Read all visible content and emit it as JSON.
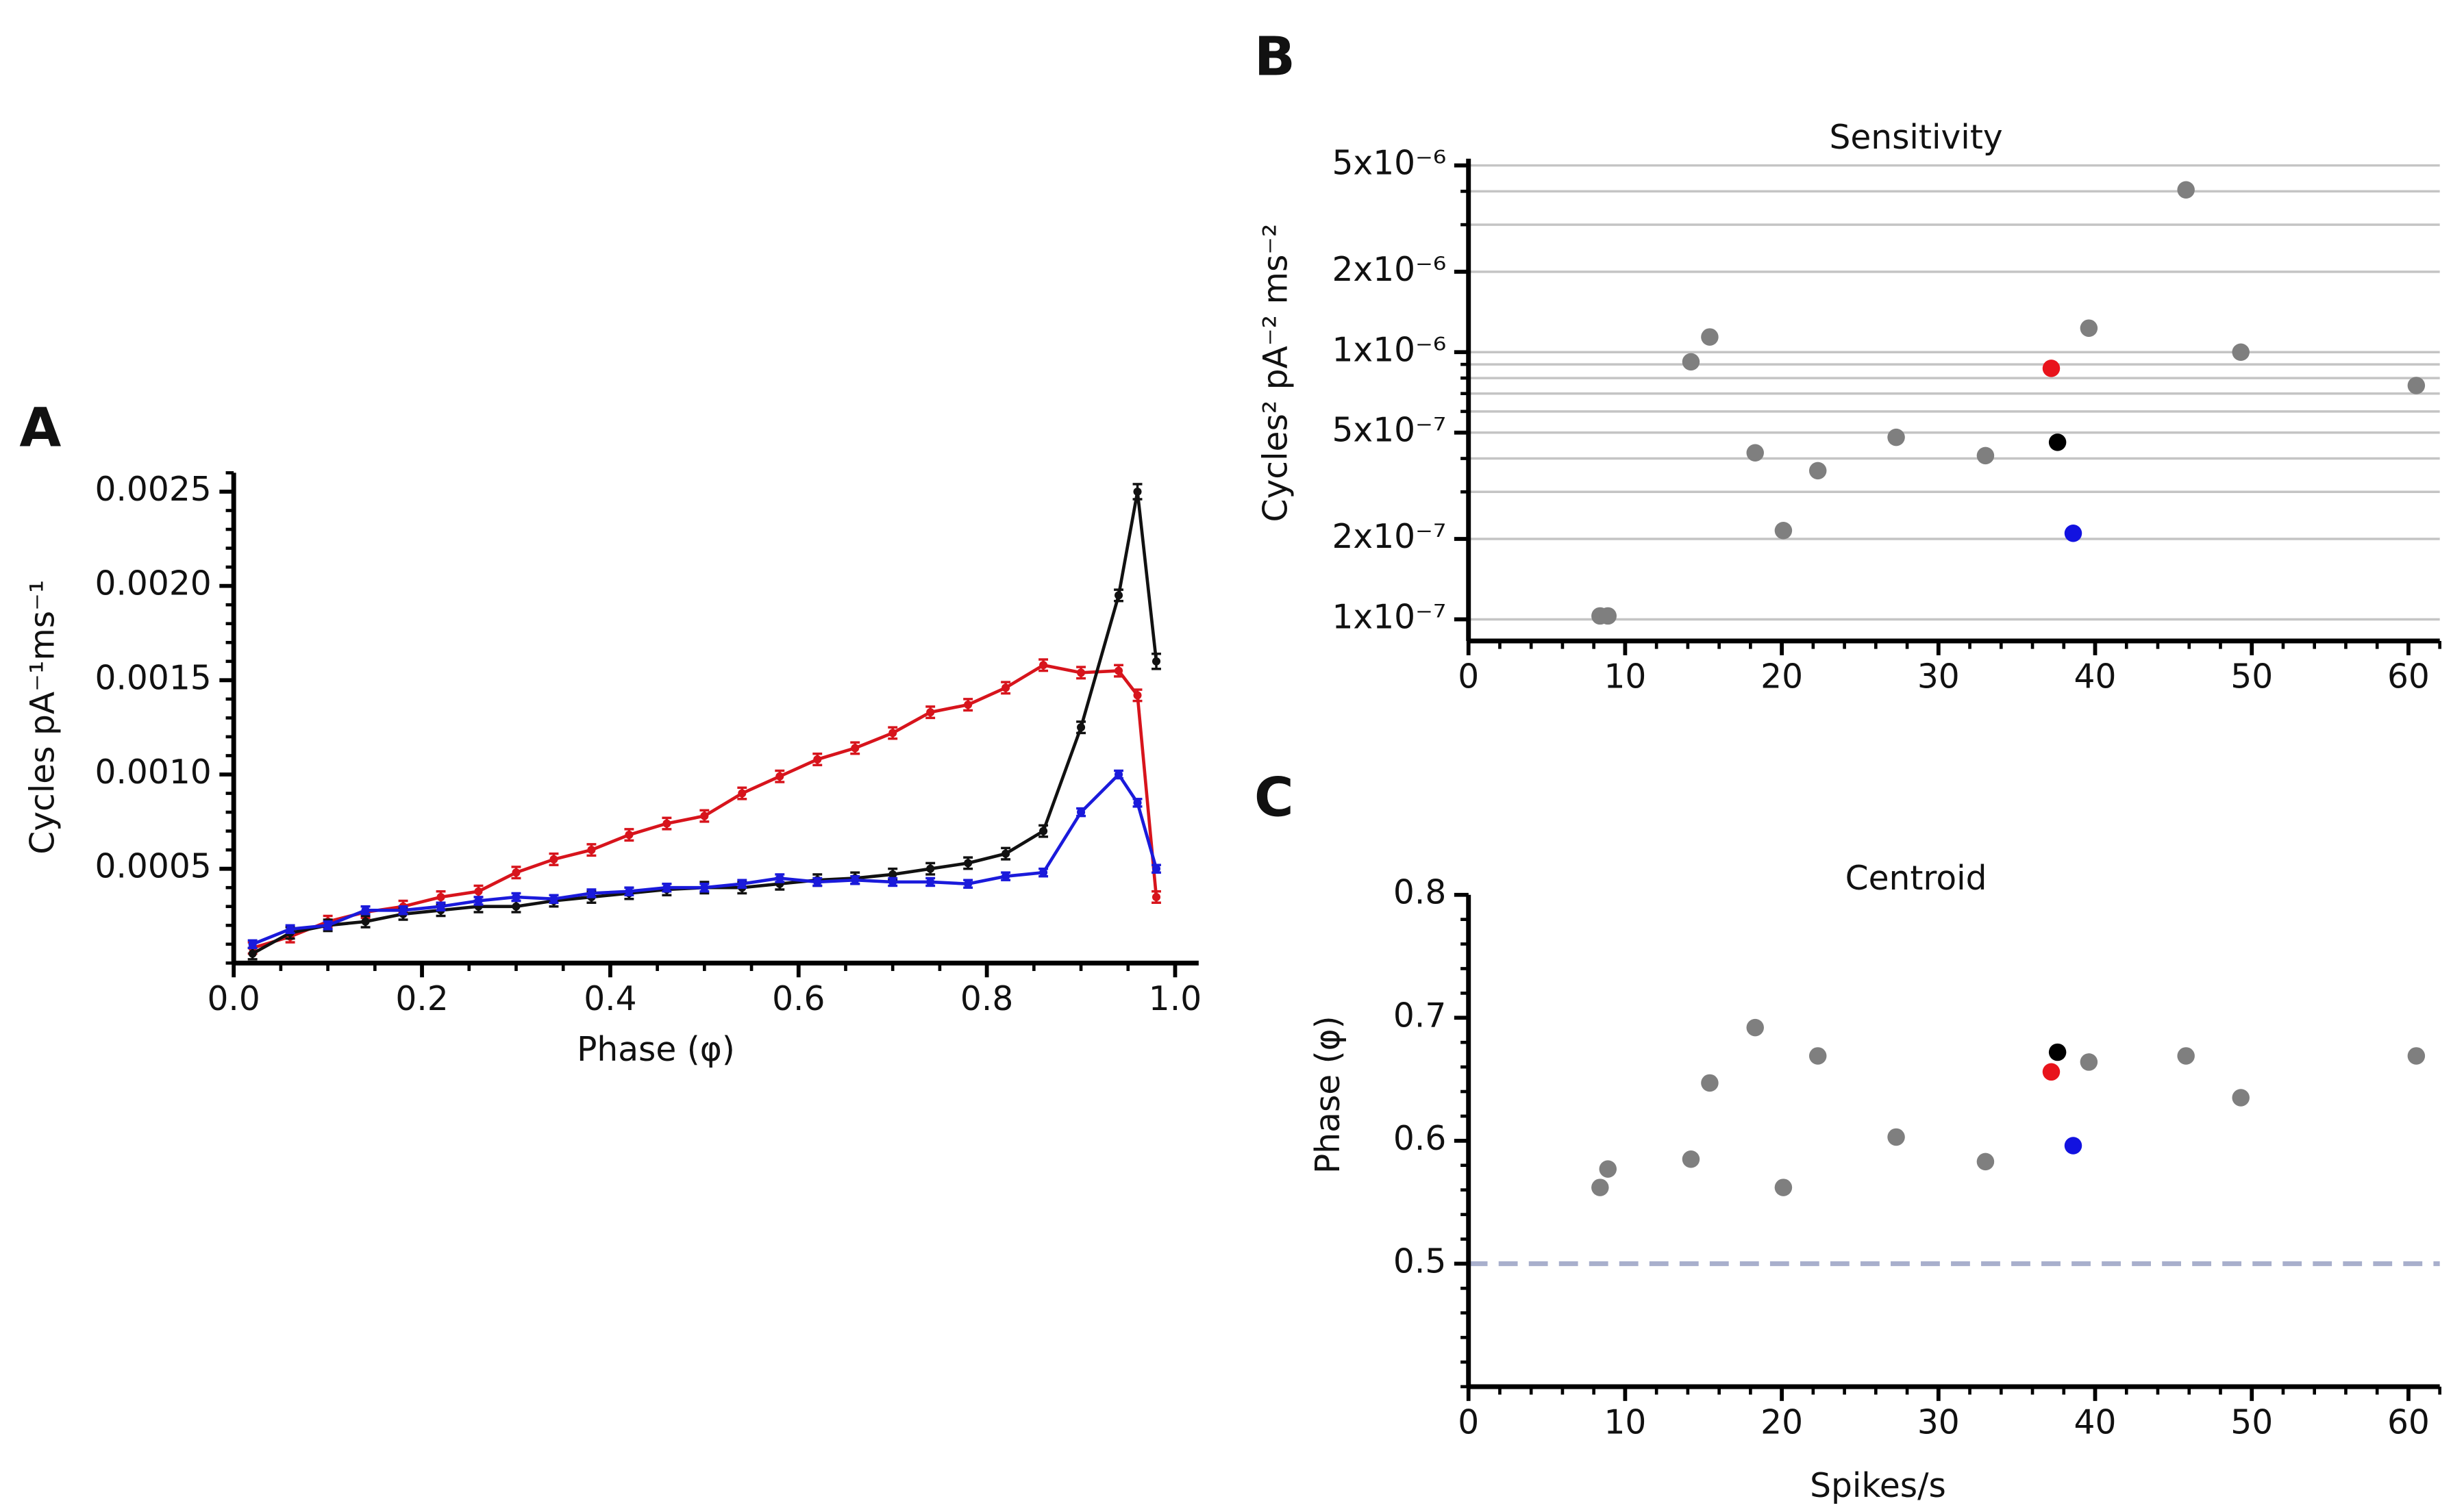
{
  "chart_data": [
    {
      "type": "line",
      "panel_label": "A",
      "x_label": "Phase (φ)",
      "y_label": "Cycles pA⁻¹ms⁻¹",
      "x": [
        0.02,
        0.06,
        0.1,
        0.14,
        0.18,
        0.22,
        0.26,
        0.3,
        0.34,
        0.38,
        0.42,
        0.46,
        0.5,
        0.54,
        0.58,
        0.62,
        0.66,
        0.7,
        0.74,
        0.78,
        0.82,
        0.86,
        0.9,
        0.94,
        0.96,
        0.98
      ],
      "series": [
        {
          "color": "#d7141c",
          "values": [
            8e-05,
            0.00014,
            0.00022,
            0.00027,
            0.0003,
            0.00035,
            0.00038,
            0.00048,
            0.00055,
            0.0006,
            0.00068,
            0.00074,
            0.00078,
            0.0009,
            0.00099,
            0.00108,
            0.00114,
            0.00122,
            0.00133,
            0.00137,
            0.00146,
            0.00158,
            0.00154,
            0.00155,
            0.00142,
            0.00035
          ],
          "errors": [
            3e-05,
            3e-05,
            3e-05,
            3e-05,
            3e-05,
            3e-05,
            3e-05,
            3e-05,
            3e-05,
            3e-05,
            3e-05,
            3e-05,
            3e-05,
            3e-05,
            3e-05,
            3e-05,
            3e-05,
            3e-05,
            3e-05,
            3e-05,
            3e-05,
            3e-05,
            3e-05,
            3e-05,
            3e-05,
            3e-05
          ]
        },
        {
          "color": "#111111",
          "values": [
            5e-05,
            0.00016,
            0.0002,
            0.00022,
            0.00026,
            0.00028,
            0.0003,
            0.0003,
            0.00033,
            0.00035,
            0.00037,
            0.00039,
            0.0004,
            0.0004,
            0.00042,
            0.00044,
            0.00045,
            0.00047,
            0.0005,
            0.00053,
            0.00058,
            0.0007,
            0.00125,
            0.00195,
            0.0025,
            0.0016
          ],
          "errors": [
            3e-05,
            3e-05,
            3e-05,
            3e-05,
            3e-05,
            3e-05,
            3e-05,
            3e-05,
            3e-05,
            3e-05,
            3e-05,
            3e-05,
            3e-05,
            3e-05,
            3e-05,
            3e-05,
            3e-05,
            3e-05,
            3e-05,
            3e-05,
            3e-05,
            3e-05,
            3e-05,
            3e-05,
            4e-05,
            4e-05
          ]
        },
        {
          "color": "#1a1adb",
          "values": [
            0.0001,
            0.00018,
            0.0002,
            0.00028,
            0.00028,
            0.0003,
            0.00033,
            0.00035,
            0.00034,
            0.00037,
            0.00038,
            0.0004,
            0.0004,
            0.00042,
            0.00045,
            0.00043,
            0.00044,
            0.00043,
            0.00043,
            0.00042,
            0.00046,
            0.00048,
            0.0008,
            0.001,
            0.00085,
            0.0005
          ],
          "errors": [
            2e-05,
            2e-05,
            2e-05,
            2e-05,
            2e-05,
            2e-05,
            2e-05,
            2e-05,
            2e-05,
            2e-05,
            2e-05,
            2e-05,
            2e-05,
            2e-05,
            2e-05,
            2e-05,
            2e-05,
            2e-05,
            2e-05,
            2e-05,
            2e-05,
            2e-05,
            2e-05,
            2e-05,
            2e-05,
            2e-05
          ]
        }
      ],
      "xlim": [
        0,
        1.025
      ],
      "ylim": [
        0,
        0.0026
      ],
      "xticks": [
        {
          "value": 0,
          "label": "0.0"
        },
        0.2,
        0.4,
        0.6,
        0.8,
        {
          "value": 1,
          "label": "1.0"
        }
      ],
      "yticks": [
        0.0005,
        {
          "value": 0.001,
          "label": "0.0010"
        },
        0.0015,
        {
          "value": 0.002,
          "label": "0.0020"
        },
        0.0025
      ],
      "x_minor_step": 0.05,
      "y_minor_step": 0.0001
    },
    {
      "type": "scatter",
      "panel_label": "B",
      "title": "Sensitivity",
      "y_label": "Cycles² pA⁻² ms⁻²",
      "log_y": true,
      "grid": true,
      "series": [
        {
          "color": "#7f7f7f",
          "x": [
            8.4,
            8.9,
            14.2,
            15.4,
            18.3,
            20.1,
            22.3,
            27.3,
            33.0,
            39.6,
            45.8,
            49.3,
            60.5
          ],
          "values": [
            1.03e-07,
            1.03e-07,
            9.2e-07,
            1.14e-06,
            4.2e-07,
            2.15e-07,
            3.6e-07,
            4.8e-07,
            4.1e-07,
            1.23e-06,
            4.05e-06,
            1e-06,
            7.5e-07
          ]
        },
        {
          "color": "#e8141c",
          "x": [
            37.2
          ],
          "values": [
            8.7e-07
          ]
        },
        {
          "color": "#000000",
          "x": [
            37.6
          ],
          "values": [
            4.6e-07
          ]
        },
        {
          "color": "#1212e0",
          "x": [
            38.6
          ],
          "values": [
            2.1e-07
          ]
        }
      ],
      "xlim": [
        0,
        62
      ],
      "ylim": [
        8.3e-08,
        5.3e-06
      ],
      "xticks": [
        0,
        10,
        20,
        30,
        40,
        50,
        60
      ],
      "yticks": [
        {
          "value": 1e-07,
          "label": "1x10⁻⁷"
        },
        {
          "value": 2e-07,
          "label": "2x10⁻⁷"
        },
        {
          "value": 5e-07,
          "label": "5x10⁻⁷"
        },
        {
          "value": 1e-06,
          "label": "1x10⁻⁶"
        },
        {
          "value": 2e-06,
          "label": "2x10⁻⁶"
        },
        {
          "value": 5e-06,
          "label": "5x10⁻⁶"
        }
      ],
      "ygrid": [
        1e-07,
        2e-07,
        3e-07,
        4e-07,
        5e-07,
        6e-07,
        7e-07,
        8e-07,
        9e-07,
        1e-06,
        2e-06,
        3e-06,
        4e-06,
        5e-06
      ],
      "x_minor_step": 2
    },
    {
      "type": "scatter",
      "panel_label": "C",
      "title": "Centroid",
      "x_label": "Spikes/s",
      "y_label": "Phase (φ)",
      "series": [
        {
          "color": "#7f7f7f",
          "x": [
            8.4,
            8.9,
            14.2,
            15.4,
            18.3,
            20.1,
            22.3,
            27.3,
            33.0,
            39.6,
            45.8,
            49.3,
            60.5
          ],
          "values": [
            0.562,
            0.577,
            0.585,
            0.647,
            0.692,
            0.562,
            0.669,
            0.603,
            0.583,
            0.664,
            0.669,
            0.635,
            0.669
          ]
        },
        {
          "color": "#e8141c",
          "x": [
            37.2
          ],
          "values": [
            0.656
          ]
        },
        {
          "color": "#000000",
          "x": [
            37.6
          ],
          "values": [
            0.672
          ]
        },
        {
          "color": "#1212e0",
          "x": [
            38.6
          ],
          "values": [
            0.596
          ]
        }
      ],
      "xlim": [
        0,
        62
      ],
      "ylim": [
        0.4,
        0.8
      ],
      "xticks": [
        0,
        10,
        20,
        30,
        40,
        50,
        60
      ],
      "yticks": [
        0.5,
        0.6,
        0.7,
        0.8
      ],
      "hline": 0.5,
      "hline_color": "#a8afcc",
      "x_minor_step": 2,
      "y_minor_step": 0.02
    }
  ]
}
